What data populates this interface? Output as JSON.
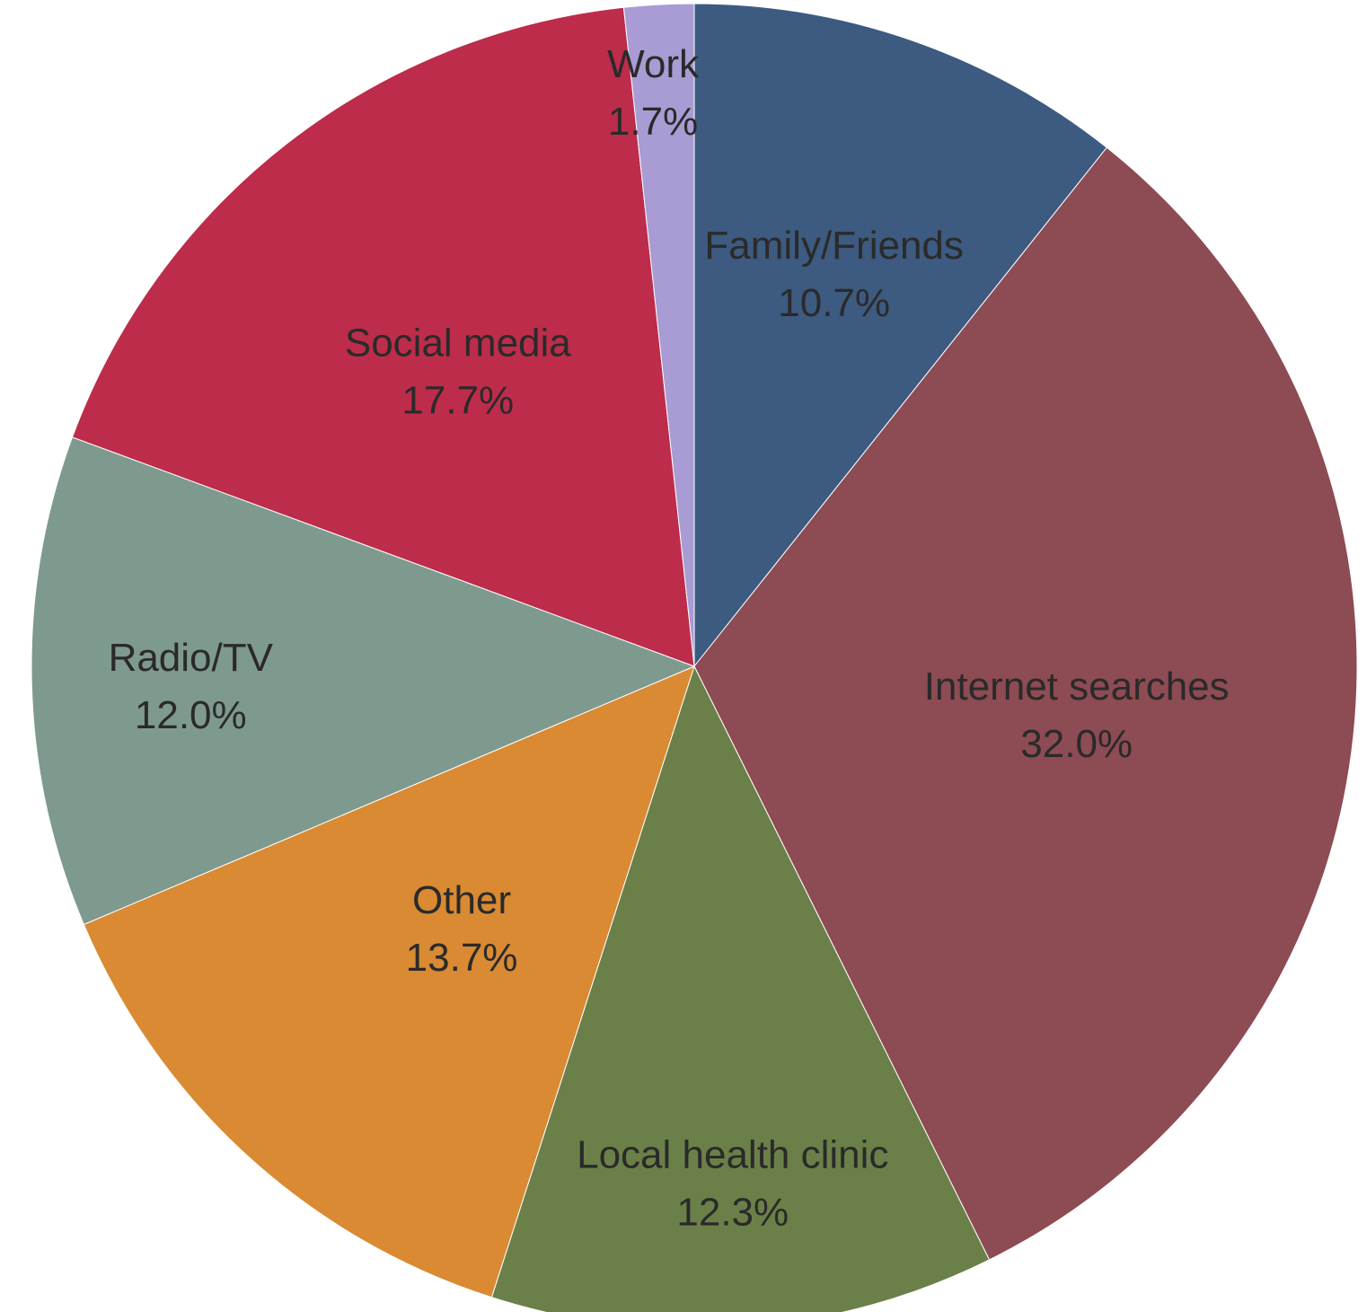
{
  "chart_data": {
    "type": "pie",
    "title": "",
    "start_angle_deg": 0,
    "direction": "clockwise",
    "slices": [
      {
        "label": "Family/Friends",
        "value": 10.7,
        "value_label": "10.7%",
        "color": "#3d5a80"
      },
      {
        "label": "Internet searches",
        "value": 32.0,
        "value_label": "32.0%",
        "color": "#8d4b53"
      },
      {
        "label": "Local health clinic",
        "value": 12.3,
        "value_label": "12.3%",
        "color": "#6b8048"
      },
      {
        "label": "Other",
        "value": 13.7,
        "value_label": "13.7%",
        "color": "#d98a32"
      },
      {
        "label": "Radio/TV",
        "value": 12.0,
        "value_label": "12.0%",
        "color": "#7e9a8e"
      },
      {
        "label": "Social media",
        "value": 17.7,
        "value_label": "17.7%",
        "color": "#bd2c4b"
      },
      {
        "label": "Work",
        "value": 1.7,
        "value_label": "1.7%",
        "color": "#a99bd3"
      }
    ]
  }
}
